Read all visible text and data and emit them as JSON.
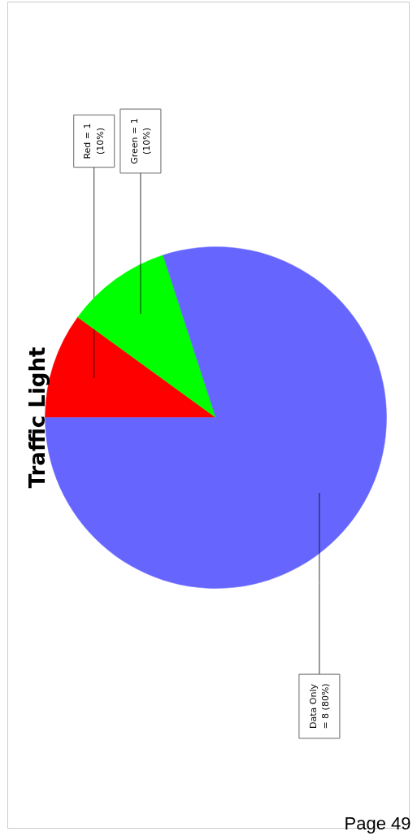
{
  "chart_data": {
    "type": "pie",
    "title": "Traffic Light",
    "categories": [
      "Red",
      "Green",
      "Data Only"
    ],
    "values": [
      1,
      1,
      8
    ],
    "colors": [
      "#ff0000",
      "#00ff00",
      "#6666ff"
    ],
    "value_labels": [
      "= 1 (10%)",
      "= 1 (10%)",
      "= 8 (80%)"
    ],
    "annotations": [
      "Page 49"
    ]
  }
}
